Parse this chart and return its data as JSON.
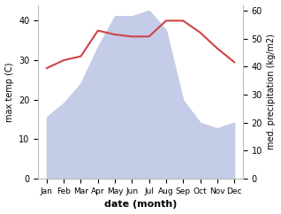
{
  "months": [
    "Jan",
    "Feb",
    "Mar",
    "Apr",
    "May",
    "Jun",
    "Jul",
    "Aug",
    "Sep",
    "Oct",
    "Nov",
    "Dec"
  ],
  "precipitation": [
    22,
    27,
    34,
    47,
    58,
    58,
    60,
    53,
    28,
    20,
    18,
    20
  ],
  "temperature": [
    28,
    30,
    31,
    37.5,
    36.5,
    36,
    36,
    40,
    40,
    37,
    33,
    29.5
  ],
  "temp_color": "#cc4444",
  "precip_fill_color": "#c5cce8",
  "xlabel": "date (month)",
  "ylabel_left": "max temp (C)",
  "ylabel_right": "med. precipitation (kg/m2)",
  "ylim_left": [
    0,
    44
  ],
  "ylim_right": [
    0,
    62
  ],
  "yticks_left": [
    0,
    10,
    20,
    30,
    40
  ],
  "yticks_right": [
    0,
    10,
    20,
    30,
    40,
    50,
    60
  ],
  "bg_color": "#ffffff",
  "spine_color": "#bbbbbb"
}
